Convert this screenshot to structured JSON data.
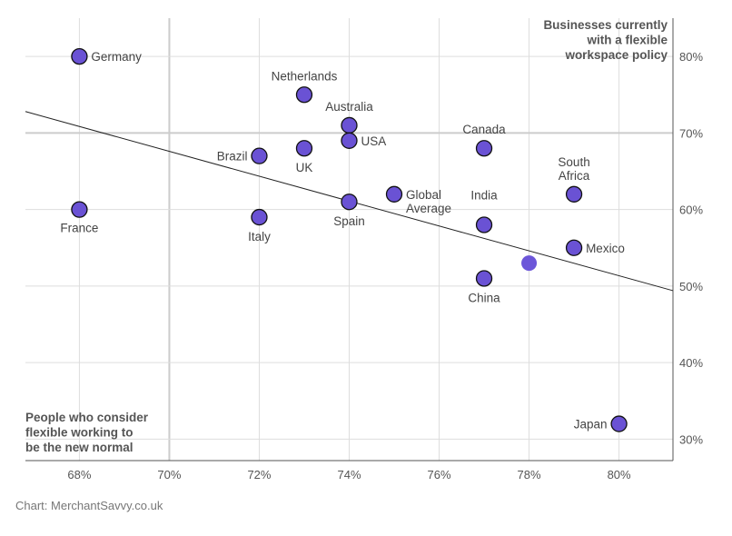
{
  "chart_data": {
    "type": "scatter",
    "title": "",
    "xlabel": "People who consider flexible working to be the new normal",
    "ylabel": "Businesses currently with a flexible workspace policy",
    "xlabel_lines": [
      "People who consider",
      "flexible working to",
      "be the new normal"
    ],
    "ylabel_lines": [
      "Businesses currently",
      "with a flexible",
      "workspace policy"
    ],
    "xlim": [
      66.8,
      81.2
    ],
    "ylim": [
      27.2,
      85
    ],
    "x_ticks": [
      68,
      70,
      72,
      74,
      76,
      78,
      80
    ],
    "x_tick_labels": [
      "68%",
      "70%",
      "72%",
      "74%",
      "76%",
      "78%",
      "80%"
    ],
    "y_ticks": [
      30,
      40,
      50,
      60,
      70,
      80
    ],
    "y_tick_labels": [
      "30%",
      "40%",
      "50%",
      "60%",
      "70%",
      "80%"
    ],
    "grid": true,
    "points": [
      {
        "label": "Germany",
        "x": 68,
        "y": 80
      },
      {
        "label": "France",
        "x": 68,
        "y": 60
      },
      {
        "label": "Netherlands",
        "x": 73,
        "y": 75
      },
      {
        "label": "Australia",
        "x": 74,
        "y": 71
      },
      {
        "label": "USA",
        "x": 74,
        "y": 69
      },
      {
        "label": "Brazil",
        "x": 72,
        "y": 67
      },
      {
        "label": "UK",
        "x": 73,
        "y": 68
      },
      {
        "label": "Italy",
        "x": 72,
        "y": 59
      },
      {
        "label": "Spain",
        "x": 74,
        "y": 61
      },
      {
        "label": "Global Average",
        "x": 75,
        "y": 62
      },
      {
        "label": "Canada",
        "x": 77,
        "y": 68
      },
      {
        "label": "India",
        "x": 77,
        "y": 58
      },
      {
        "label": "China",
        "x": 77,
        "y": 51
      },
      {
        "label": "South Africa",
        "x": 79,
        "y": 62
      },
      {
        "label": "Mexico",
        "x": 79,
        "y": 55
      },
      {
        "label": "Japan",
        "x": 80,
        "y": 32
      },
      {
        "label": "",
        "x": 78,
        "y": 53,
        "highlight": true
      }
    ],
    "trendline": {
      "x": [
        66.8,
        81.2
      ],
      "y": [
        72.8,
        49.4
      ]
    },
    "colors": {
      "point": "#6a52d4",
      "highlight": "#6c56d9",
      "trendline": "#222222",
      "grid": "#dddddd"
    }
  },
  "source": "Chart: MerchantSavvy.co.uk"
}
